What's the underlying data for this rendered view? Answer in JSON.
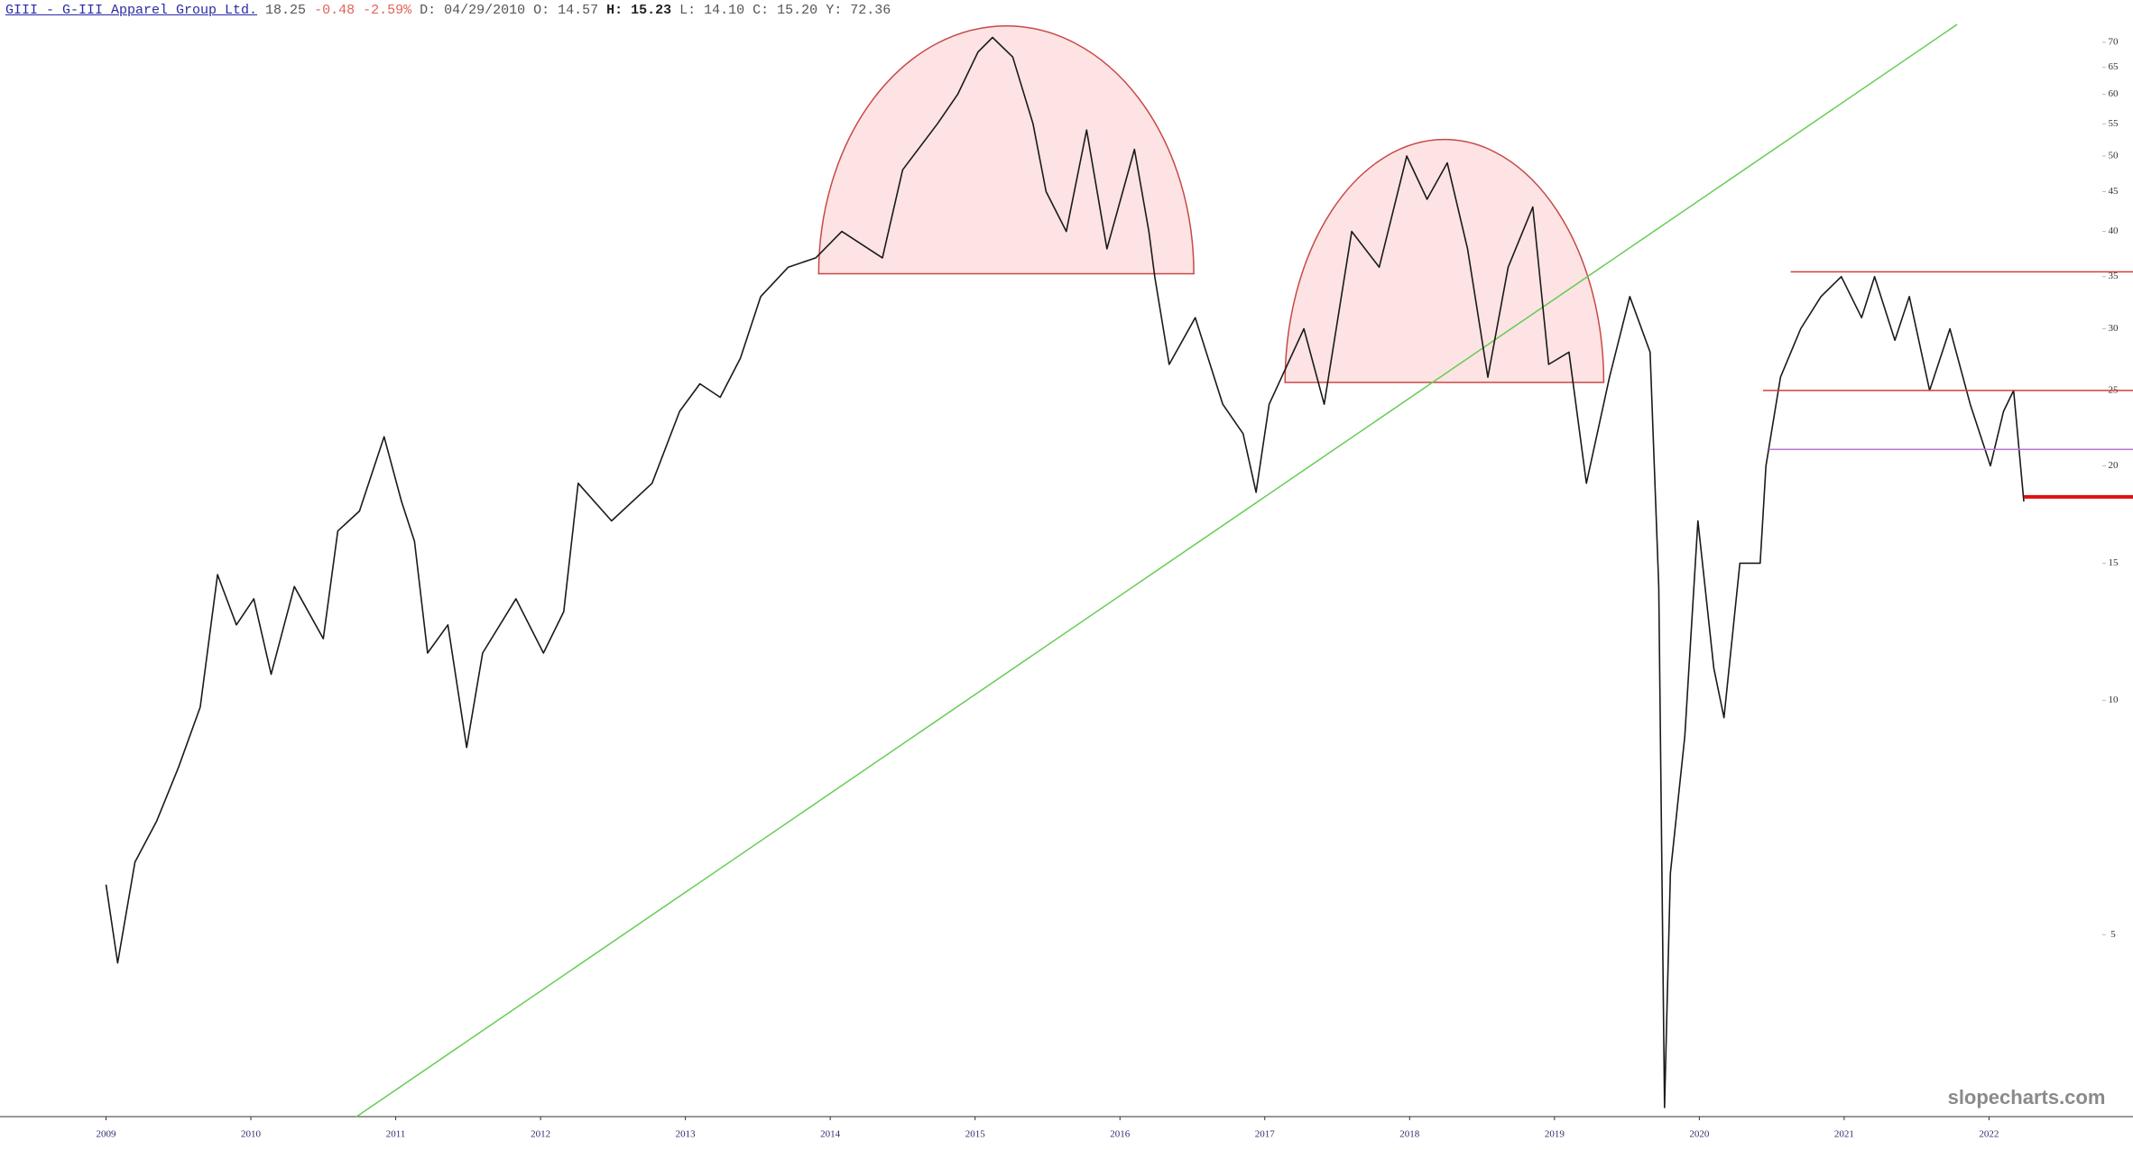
{
  "header": {
    "ticker": "GIII - G-III Apparel Group Ltd.",
    "last": "18.25",
    "change": "-0.48",
    "change_pct": "-2.59%",
    "date": "D: 04/29/2010",
    "open": "O: 14.57",
    "high": "H: 15.23",
    "low": "L: 14.10",
    "close": "C: 15.20",
    "y": "Y: 72.36"
  },
  "watermark": "slopecharts.com",
  "chart_data": {
    "type": "line",
    "log_scale": true,
    "color": "#1a1a1a",
    "x": [
      2009.0,
      2009.08,
      2009.2,
      2009.35,
      2009.5,
      2009.65,
      2009.77,
      2009.9,
      2010.02,
      2010.14,
      2010.3,
      2010.5,
      2010.6,
      2010.75,
      2010.92,
      2011.04,
      2011.13,
      2011.22,
      2011.36,
      2011.49,
      2011.6,
      2011.83,
      2012.02,
      2012.16,
      2012.26,
      2012.49,
      2012.77,
      2012.96,
      2013.1,
      2013.24,
      2013.38,
      2013.52,
      2013.71,
      2013.9,
      2014.08,
      2014.36,
      2014.5,
      2014.74,
      2014.88,
      2015.02,
      2015.12,
      2015.26,
      2015.4,
      2015.49,
      2015.63,
      2015.77,
      2015.91,
      2016.1,
      2016.2,
      2016.24,
      2016.34,
      2016.52,
      2016.71,
      2016.85,
      2016.94,
      2017.03,
      2017.27,
      2017.41,
      2017.6,
      2017.79,
      2017.98,
      2018.12,
      2018.26,
      2018.4,
      2018.54,
      2018.68,
      2018.85,
      2018.96,
      2019.1,
      2019.22,
      2019.38,
      2019.52,
      2019.66,
      2019.72,
      2019.76,
      2019.8,
      2019.9,
      2019.99,
      2020.1,
      2020.17,
      2020.28,
      2020.42,
      2020.46,
      2020.56,
      2020.7,
      2020.84,
      2020.98,
      2021.12,
      2021.21,
      2021.35,
      2021.45,
      2021.59,
      2021.73,
      2021.87,
      2022.01,
      2022.1,
      2022.17,
      2022.24
    ],
    "series": [
      {
        "name": "GIII",
        "values": [
          5.8,
          4.6,
          6.2,
          7.0,
          8.2,
          9.8,
          14.5,
          12.5,
          13.5,
          10.8,
          14,
          12,
          16.5,
          17.5,
          21.8,
          18,
          16,
          11.5,
          12.5,
          8.7,
          11.5,
          13.5,
          11.5,
          13,
          19,
          17,
          19,
          23.5,
          25.5,
          24.5,
          27.5,
          33,
          36,
          37,
          40,
          37,
          48,
          55,
          60,
          68,
          71,
          67,
          55,
          45,
          40,
          54,
          38,
          51,
          40,
          35,
          27,
          31,
          24,
          22,
          18.5,
          24,
          30,
          24,
          40,
          36,
          50,
          44,
          49,
          38,
          26,
          36,
          43,
          27,
          28,
          19,
          26,
          33,
          28,
          14,
          3.0,
          6,
          9,
          17,
          11,
          9.5,
          15,
          15,
          20,
          26,
          30,
          33,
          35,
          31,
          35,
          29,
          33,
          25,
          30,
          24,
          20,
          23.5,
          25,
          18
        ]
      }
    ],
    "xlim": [
      2008.268,
      2022.994
    ],
    "ylim": [
      2.92,
      73.8
    ],
    "xticks": [
      2009,
      2010,
      2011,
      2012,
      2013,
      2014,
      2015,
      2016,
      2017,
      2018,
      2019,
      2020,
      2021,
      2022
    ],
    "yticks": [
      5,
      10,
      15,
      20,
      25,
      30,
      35,
      40,
      45,
      50,
      55,
      60,
      65,
      70
    ],
    "arcs": [
      {
        "x": [
          2013.92,
          2016.51
        ],
        "base": 35.3,
        "top": 73.5,
        "color": "#c84848",
        "fill": "#fde3e3"
      },
      {
        "x": [
          2017.14,
          2019.34
        ],
        "base": 25.6,
        "top": 52.5,
        "color": "#c84848",
        "fill": "#fde3e3"
      }
    ],
    "levels": [
      {
        "from": 2020.63,
        "value": 35.5,
        "color": "#d04040",
        "width": 1.5
      },
      {
        "from": 2020.44,
        "value": 25,
        "color": "#d04040",
        "width": 1.5
      },
      {
        "from": 2020.48,
        "value": 21,
        "color": "#c070d8",
        "width": 1.5
      },
      {
        "from": 2022.24,
        "value": 18.25,
        "color": "#e01010",
        "width": 4
      }
    ],
    "trendline": {
      "x": [
        2010.73,
        2021.78
      ],
      "y": [
        2.92,
        73.8
      ],
      "color": "#66cc55"
    }
  }
}
